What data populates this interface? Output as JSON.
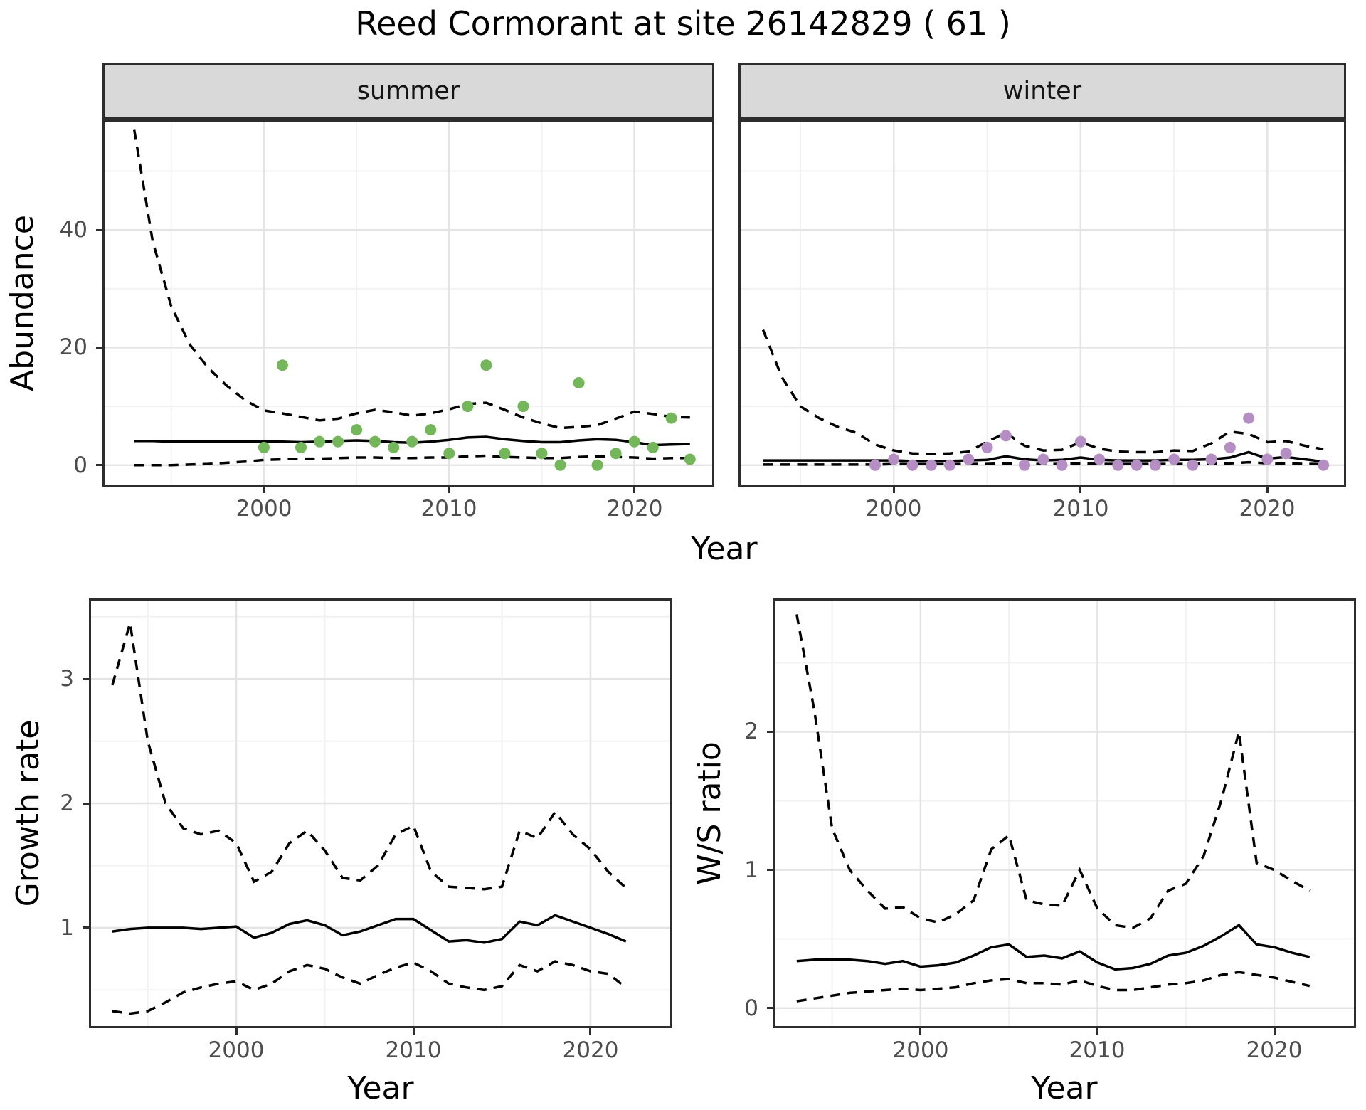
{
  "title": "Reed Cormorant at site 26142829 ( 61 )",
  "top_figure": {
    "y_label": "Abundance",
    "x_label": "Year"
  },
  "colors": {
    "summer_point": "#74b65a",
    "winter_point": "#b58fc4",
    "line": "#000000",
    "strip_bg": "#d9d9d9",
    "panel_border": "#2d2d2d",
    "grid_major": "#e4e4e4",
    "grid_minor": "#f2f2f2",
    "axis_text": "#4d4d4d"
  },
  "chart_data": [
    {
      "id": "abundance-summer",
      "type": "line",
      "facet_label": "summer",
      "x_ticks": [
        2000,
        2010,
        2020
      ],
      "x_minor": [
        1995,
        2005,
        2015
      ],
      "y_ticks": [
        0,
        20,
        40
      ],
      "y_minor": [
        10,
        30,
        50
      ],
      "x_domain": [
        1991.4,
        2024.2
      ],
      "y_domain": [
        -3.3,
        58.4
      ],
      "y_axis": true,
      "series": [
        {
          "name": "upper_ci",
          "style": "dashed",
          "years": [
            1993,
            1994,
            1995,
            1996,
            1997,
            1998,
            1999,
            2000,
            2001,
            2002,
            2003,
            2004,
            2005,
            2006,
            2007,
            2008,
            2009,
            2010,
            2011,
            2012,
            2013,
            2014,
            2015,
            2016,
            2017,
            2018,
            2019,
            2020,
            2021,
            2022,
            2023
          ],
          "values": [
            57,
            38,
            27,
            20.5,
            16.5,
            13.5,
            11,
            9.3,
            8.8,
            8.2,
            7.6,
            7.9,
            8.8,
            9.4,
            9.0,
            8.4,
            8.8,
            9.5,
            10.4,
            10.6,
            9.4,
            8.1,
            7.1,
            6.3,
            6.5,
            6.8,
            7.9,
            9.1,
            8.7,
            8.2,
            8.1
          ]
        },
        {
          "name": "lower_ci",
          "style": "dashed",
          "years": [
            1993,
            1994,
            1995,
            1996,
            1997,
            1998,
            1999,
            2000,
            2001,
            2002,
            2003,
            2004,
            2005,
            2006,
            2007,
            2008,
            2009,
            2010,
            2011,
            2012,
            2013,
            2014,
            2015,
            2016,
            2017,
            2018,
            2019,
            2020,
            2021,
            2022,
            2023
          ],
          "values": [
            0,
            0,
            0,
            0.1,
            0.2,
            0.4,
            0.6,
            0.9,
            1.0,
            1.1,
            1.1,
            1.2,
            1.3,
            1.3,
            1.2,
            1.2,
            1.3,
            1.3,
            1.5,
            1.6,
            1.4,
            1.3,
            1.2,
            1.2,
            1.4,
            1.5,
            1.4,
            1.3,
            1.1,
            1.2,
            1.2
          ]
        },
        {
          "name": "fit",
          "style": "solid",
          "years": [
            1993,
            1994,
            1995,
            1996,
            1997,
            1998,
            1999,
            2000,
            2001,
            2002,
            2003,
            2004,
            2005,
            2006,
            2007,
            2008,
            2009,
            2010,
            2011,
            2012,
            2013,
            2014,
            2015,
            2016,
            2017,
            2018,
            2019,
            2020,
            2021,
            2022,
            2023
          ],
          "values": [
            4.1,
            4.1,
            4.0,
            4.0,
            4.0,
            4.0,
            4.0,
            4.0,
            4.0,
            3.9,
            4.0,
            4.1,
            4.2,
            4.1,
            3.9,
            3.8,
            4.0,
            4.3,
            4.7,
            4.8,
            4.4,
            4.1,
            3.9,
            3.9,
            4.2,
            4.4,
            4.3,
            3.9,
            3.4,
            3.5,
            3.6
          ]
        },
        {
          "name": "observed_counts",
          "style": "points",
          "color": "#74b65a",
          "years": [
            2000,
            2001,
            2002,
            2003,
            2004,
            2005,
            2006,
            2007,
            2008,
            2009,
            2010,
            2011,
            2012,
            2013,
            2014,
            2015,
            2016,
            2017,
            2018,
            2019,
            2020,
            2021,
            2022,
            2023
          ],
          "values": [
            3,
            17,
            3,
            4,
            4,
            6,
            4,
            3,
            4,
            6,
            2,
            10,
            17,
            2,
            10,
            2,
            0,
            14,
            0,
            2,
            4,
            3,
            8,
            1
          ]
        }
      ]
    },
    {
      "id": "abundance-winter",
      "type": "line",
      "facet_label": "winter",
      "x_ticks": [
        2000,
        2010,
        2020
      ],
      "x_minor": [
        1995,
        2005,
        2015
      ],
      "y_ticks": [
        0,
        20,
        40
      ],
      "y_minor": [
        10,
        30,
        50
      ],
      "x_domain": [
        1991.8,
        2024.1
      ],
      "y_domain": [
        -3.3,
        58.4
      ],
      "y_axis": false,
      "series": [
        {
          "name": "upper_ci",
          "style": "dashed",
          "years": [
            1993,
            1994,
            1995,
            1996,
            1997,
            1998,
            1999,
            2000,
            2001,
            2002,
            2003,
            2004,
            2005,
            2006,
            2007,
            2008,
            2009,
            2010,
            2011,
            2012,
            2013,
            2014,
            2015,
            2016,
            2017,
            2018,
            2019,
            2020,
            2021,
            2022,
            2023
          ],
          "values": [
            23,
            15,
            10,
            8,
            6.5,
            5.5,
            3.5,
            2.5,
            2.0,
            1.9,
            2.0,
            2.3,
            4.0,
            5.5,
            3.3,
            2.5,
            2.6,
            3.9,
            2.8,
            2.3,
            2.2,
            2.2,
            2.5,
            2.4,
            3.7,
            5.7,
            5.3,
            3.9,
            4.1,
            3.3,
            2.7
          ]
        },
        {
          "name": "lower_ci",
          "style": "dashed",
          "years": [
            1993,
            1994,
            1995,
            1996,
            1997,
            1998,
            1999,
            2000,
            2001,
            2002,
            2003,
            2004,
            2005,
            2006,
            2007,
            2008,
            2009,
            2010,
            2011,
            2012,
            2013,
            2014,
            2015,
            2016,
            2017,
            2018,
            2019,
            2020,
            2021,
            2022,
            2023
          ],
          "values": [
            0.1,
            0.1,
            0.1,
            0.1,
            0.1,
            0.1,
            0.1,
            0.2,
            0.2,
            0.2,
            0.2,
            0.2,
            0.2,
            0.3,
            0.2,
            0.2,
            0.2,
            0.3,
            0.2,
            0.2,
            0.2,
            0.2,
            0.2,
            0.2,
            0.3,
            0.3,
            0.5,
            0.3,
            0.3,
            0.2,
            0.2
          ]
        },
        {
          "name": "fit",
          "style": "solid",
          "years": [
            1993,
            1994,
            1995,
            1996,
            1997,
            1998,
            1999,
            2000,
            2001,
            2002,
            2003,
            2004,
            2005,
            2006,
            2007,
            2008,
            2009,
            2010,
            2011,
            2012,
            2013,
            2014,
            2015,
            2016,
            2017,
            2018,
            2019,
            2020,
            2021,
            2022,
            2023
          ],
          "values": [
            0.8,
            0.8,
            0.8,
            0.8,
            0.8,
            0.8,
            0.8,
            0.8,
            0.7,
            0.7,
            0.7,
            0.8,
            0.9,
            1.5,
            1.0,
            0.8,
            0.9,
            1.3,
            0.9,
            0.8,
            0.8,
            0.8,
            0.9,
            0.9,
            1.0,
            1.3,
            2.2,
            1.1,
            1.4,
            1.0,
            0.6
          ]
        },
        {
          "name": "observed_counts",
          "style": "points",
          "color": "#b58fc4",
          "years": [
            1999,
            2000,
            2001,
            2002,
            2003,
            2004,
            2005,
            2006,
            2007,
            2008,
            2009,
            2010,
            2011,
            2012,
            2013,
            2014,
            2015,
            2016,
            2017,
            2018,
            2019,
            2020,
            2021,
            2023
          ],
          "values": [
            0,
            1,
            0,
            0,
            0,
            1,
            3,
            5,
            0,
            1,
            0,
            4,
            1,
            0,
            0,
            0,
            1,
            0,
            1,
            3,
            8,
            1,
            2,
            0
          ]
        }
      ]
    },
    {
      "id": "growth-rate",
      "type": "line",
      "y_axis_label": "Growth rate",
      "x_axis_label": "Year",
      "x_ticks": [
        2000,
        2010,
        2020
      ],
      "x_minor": [
        1995,
        2005,
        2015
      ],
      "y_ticks": [
        1,
        2,
        3
      ],
      "y_minor": [
        0.5,
        1.5,
        2.5,
        3.5
      ],
      "x_domain": [
        1991.8,
        2024.5
      ],
      "y_domain": [
        0.21,
        3.63
      ],
      "y_axis": true,
      "series": [
        {
          "name": "upper_ci",
          "style": "dashed",
          "years": [
            1993,
            1994,
            1995,
            1996,
            1997,
            1998,
            1999,
            2000,
            2001,
            2002,
            2003,
            2004,
            2005,
            2006,
            2007,
            2008,
            2009,
            2010,
            2011,
            2012,
            2013,
            2014,
            2015,
            2016,
            2017,
            2018,
            2019,
            2020,
            2021,
            2022
          ],
          "values": [
            2.95,
            3.45,
            2.5,
            2.0,
            1.8,
            1.75,
            1.78,
            1.68,
            1.37,
            1.45,
            1.68,
            1.78,
            1.62,
            1.4,
            1.38,
            1.5,
            1.75,
            1.82,
            1.45,
            1.33,
            1.32,
            1.31,
            1.33,
            1.78,
            1.72,
            1.93,
            1.75,
            1.63,
            1.45,
            1.32
          ]
        },
        {
          "name": "lower_ci",
          "style": "dashed",
          "years": [
            1993,
            1994,
            1995,
            1996,
            1997,
            1998,
            1999,
            2000,
            2001,
            2002,
            2003,
            2004,
            2005,
            2006,
            2007,
            2008,
            2009,
            2010,
            2011,
            2012,
            2013,
            2014,
            2015,
            2016,
            2017,
            2018,
            2019,
            2020,
            2021,
            2022
          ],
          "values": [
            0.33,
            0.31,
            0.33,
            0.4,
            0.48,
            0.52,
            0.55,
            0.57,
            0.5,
            0.55,
            0.65,
            0.7,
            0.67,
            0.6,
            0.55,
            0.62,
            0.68,
            0.72,
            0.65,
            0.55,
            0.52,
            0.5,
            0.53,
            0.7,
            0.65,
            0.73,
            0.7,
            0.65,
            0.63,
            0.52
          ]
        },
        {
          "name": "fit",
          "style": "solid",
          "years": [
            1993,
            1994,
            1995,
            1996,
            1997,
            1998,
            1999,
            2000,
            2001,
            2002,
            2003,
            2004,
            2005,
            2006,
            2007,
            2008,
            2009,
            2010,
            2011,
            2012,
            2013,
            2014,
            2015,
            2016,
            2017,
            2018,
            2019,
            2020,
            2021,
            2022
          ],
          "values": [
            0.97,
            0.99,
            1.0,
            1.0,
            1.0,
            0.99,
            1.0,
            1.01,
            0.92,
            0.96,
            1.03,
            1.06,
            1.02,
            0.94,
            0.97,
            1.02,
            1.07,
            1.07,
            0.98,
            0.89,
            0.9,
            0.88,
            0.91,
            1.05,
            1.02,
            1.1,
            1.05,
            1.0,
            0.95,
            0.89
          ]
        }
      ]
    },
    {
      "id": "ws-ratio",
      "type": "line",
      "y_axis_label": "W/S ratio",
      "x_axis_label": "Year",
      "x_ticks": [
        2000,
        2010,
        2020
      ],
      "x_minor": [
        1995,
        2005,
        2015
      ],
      "y_ticks": [
        0,
        1,
        2
      ],
      "y_minor": [
        0.5,
        1.5,
        2.5
      ],
      "x_domain": [
        1991.8,
        2024.5
      ],
      "y_domain": [
        -0.13,
        2.95
      ],
      "y_axis": true,
      "series": [
        {
          "name": "upper_ci",
          "style": "dashed",
          "years": [
            1993,
            1994,
            1995,
            1996,
            1997,
            1998,
            1999,
            2000,
            2001,
            2002,
            2003,
            2004,
            2005,
            2006,
            2007,
            2008,
            2009,
            2010,
            2011,
            2012,
            2013,
            2014,
            2015,
            2016,
            2017,
            2018,
            2019,
            2020,
            2021,
            2022
          ],
          "values": [
            2.85,
            2.15,
            1.3,
            1.0,
            0.85,
            0.72,
            0.73,
            0.65,
            0.62,
            0.68,
            0.78,
            1.15,
            1.25,
            0.78,
            0.75,
            0.74,
            1.0,
            0.72,
            0.6,
            0.58,
            0.65,
            0.85,
            0.9,
            1.1,
            1.5,
            2.0,
            1.05,
            1.0,
            0.92,
            0.85
          ]
        },
        {
          "name": "lower_ci",
          "style": "dashed",
          "years": [
            1993,
            1994,
            1995,
            1996,
            1997,
            1998,
            1999,
            2000,
            2001,
            2002,
            2003,
            2004,
            2005,
            2006,
            2007,
            2008,
            2009,
            2010,
            2011,
            2012,
            2013,
            2014,
            2015,
            2016,
            2017,
            2018,
            2019,
            2020,
            2021,
            2022
          ],
          "values": [
            0.05,
            0.07,
            0.09,
            0.11,
            0.12,
            0.13,
            0.14,
            0.13,
            0.14,
            0.15,
            0.18,
            0.2,
            0.21,
            0.18,
            0.18,
            0.17,
            0.2,
            0.16,
            0.13,
            0.13,
            0.15,
            0.17,
            0.18,
            0.2,
            0.24,
            0.26,
            0.24,
            0.22,
            0.19,
            0.16
          ]
        },
        {
          "name": "fit",
          "style": "solid",
          "years": [
            1993,
            1994,
            1995,
            1996,
            1997,
            1998,
            1999,
            2000,
            2001,
            2002,
            2003,
            2004,
            2005,
            2006,
            2007,
            2008,
            2009,
            2010,
            2011,
            2012,
            2013,
            2014,
            2015,
            2016,
            2017,
            2018,
            2019,
            2020,
            2021,
            2022
          ],
          "values": [
            0.34,
            0.35,
            0.35,
            0.35,
            0.34,
            0.32,
            0.34,
            0.3,
            0.31,
            0.33,
            0.38,
            0.44,
            0.46,
            0.37,
            0.38,
            0.36,
            0.41,
            0.33,
            0.28,
            0.29,
            0.32,
            0.38,
            0.4,
            0.45,
            0.52,
            0.6,
            0.46,
            0.44,
            0.4,
            0.37
          ]
        }
      ]
    }
  ]
}
